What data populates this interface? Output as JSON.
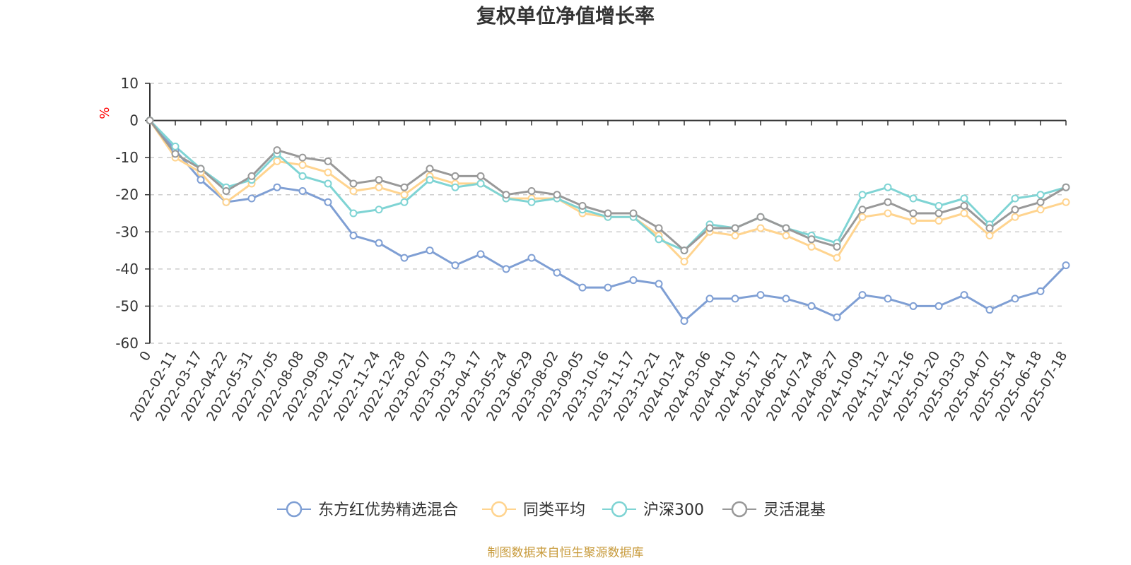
{
  "page": {
    "title": "复权单位净值增长率",
    "source": "制图数据来自恒生聚源数据库"
  },
  "chart_data": {
    "type": "line",
    "title": "复权单位净值增长率",
    "xlabel": "",
    "ylabel": "%",
    "ylim": [
      -60,
      10
    ],
    "yticks": [
      10,
      0,
      -10,
      -20,
      -30,
      -40,
      -50,
      -60
    ],
    "grid": true,
    "legend_position": "bottom",
    "x": [
      "0",
      "2022-02-11",
      "2022-03-17",
      "2022-04-22",
      "2022-05-31",
      "2022-07-05",
      "2022-08-08",
      "2022-09-09",
      "2022-10-21",
      "2022-11-24",
      "2022-12-28",
      "2023-02-07",
      "2023-03-13",
      "2023-04-17",
      "2023-05-24",
      "2023-06-29",
      "2023-08-02",
      "2023-09-05",
      "2023-10-16",
      "2023-11-17",
      "2023-12-21",
      "2024-01-24",
      "2024-03-06",
      "2024-04-10",
      "2024-05-17",
      "2024-06-21",
      "2024-07-24",
      "2024-08-27",
      "2024-10-09",
      "2024-11-12",
      "2024-12-16",
      "2025-01-20",
      "2025-03-03",
      "2025-04-07",
      "2025-05-14",
      "2025-06-18",
      "2025-07-18"
    ],
    "series": [
      {
        "name": "东方红优势精选混合",
        "color": "#7f9fd4",
        "values": [
          0,
          -8,
          -16,
          -22,
          -21,
          -18,
          -19,
          -22,
          -31,
          -33,
          -37,
          -35,
          -39,
          -36,
          -40,
          -37,
          -41,
          -45,
          -45,
          -43,
          -44,
          -54,
          -48,
          -48,
          -47,
          -48,
          -50,
          -53,
          -47,
          -48,
          -50,
          -50,
          -47,
          -51,
          -48,
          -46,
          -39
        ]
      },
      {
        "name": "同类平均",
        "color": "#ffd48f",
        "values": [
          0,
          -10,
          -14,
          -22,
          -17,
          -11,
          -12,
          -14,
          -19,
          -18,
          -20,
          -15,
          -17,
          -17,
          -21,
          -21,
          -21,
          -25,
          -26,
          -26,
          -31,
          -38,
          -30,
          -31,
          -29,
          -31,
          -34,
          -37,
          -26,
          -25,
          -27,
          -27,
          -25,
          -31,
          -26,
          -24,
          -22
        ]
      },
      {
        "name": "沪深300",
        "color": "#7fd4d4",
        "values": [
          0,
          -7,
          -13,
          -18,
          -16,
          -9,
          -15,
          -17,
          -25,
          -24,
          -22,
          -16,
          -18,
          -17,
          -21,
          -22,
          -21,
          -24,
          -26,
          -26,
          -32,
          -35,
          -28,
          -29,
          -26,
          -29,
          -31,
          -33,
          -20,
          -18,
          -21,
          -23,
          -21,
          -28,
          -21,
          -20,
          -18
        ]
      },
      {
        "name": "灵活混基",
        "color": "#999999",
        "values": [
          0,
          -9,
          -13,
          -19,
          -15,
          -8,
          -10,
          -11,
          -17,
          -16,
          -18,
          -13,
          -15,
          -15,
          -20,
          -19,
          -20,
          -23,
          -25,
          -25,
          -29,
          -35,
          -29,
          -29,
          -26,
          -29,
          -32,
          -34,
          -24,
          -22,
          -25,
          -25,
          -23,
          -29,
          -24,
          -22,
          -18
        ]
      }
    ]
  }
}
